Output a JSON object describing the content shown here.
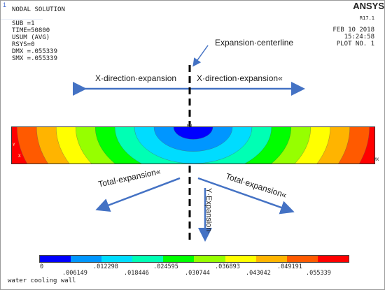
{
  "window": {
    "corner_index": "1"
  },
  "info_block": {
    "lines": [
      "NODAL SOLUTION",
      "",
      "SUB =1",
      "TIME=50800",
      "USUM      (AVG)",
      "RSYS=0",
      "DMX =.055339",
      "SMX =.055339"
    ]
  },
  "header": {
    "brand": "ANSYS",
    "release": "R17.1",
    "date": "FEB 10 2018",
    "time": "15:24:58",
    "plot_no": "PLOT NO.   1"
  },
  "annotations": {
    "centerline": "Expansion·centerline",
    "x_left": "X·direction·expansion",
    "x_right": "X·direction·expansion«",
    "total_left": "Total·expansion«",
    "total_right": "Total·expansion«",
    "y_expansion": "Y·Expansion·"
  },
  "model": {
    "mn_label": "MN",
    "mx_label": "MX",
    "y_axis": "Y",
    "x_axis": "X",
    "side_label": "——————————"
  },
  "legend": {
    "colors": [
      "#0000ff",
      "#0096ff",
      "#00dcff",
      "#00ffb4",
      "#00ff00",
      "#96ff00",
      "#ffff00",
      "#ffb400",
      "#ff5a00",
      "#ff0000"
    ],
    "ticks_top": [
      "0",
      ".012298",
      ".024595",
      ".036893",
      ".049191"
    ],
    "ticks_bottom": [
      ".006149",
      ".018446",
      ".030744",
      ".043042",
      ".055339"
    ]
  },
  "footer": {
    "caption": "water cooling wall"
  },
  "colors": {
    "arrow": "#4472c4",
    "centerline": "#000000"
  }
}
